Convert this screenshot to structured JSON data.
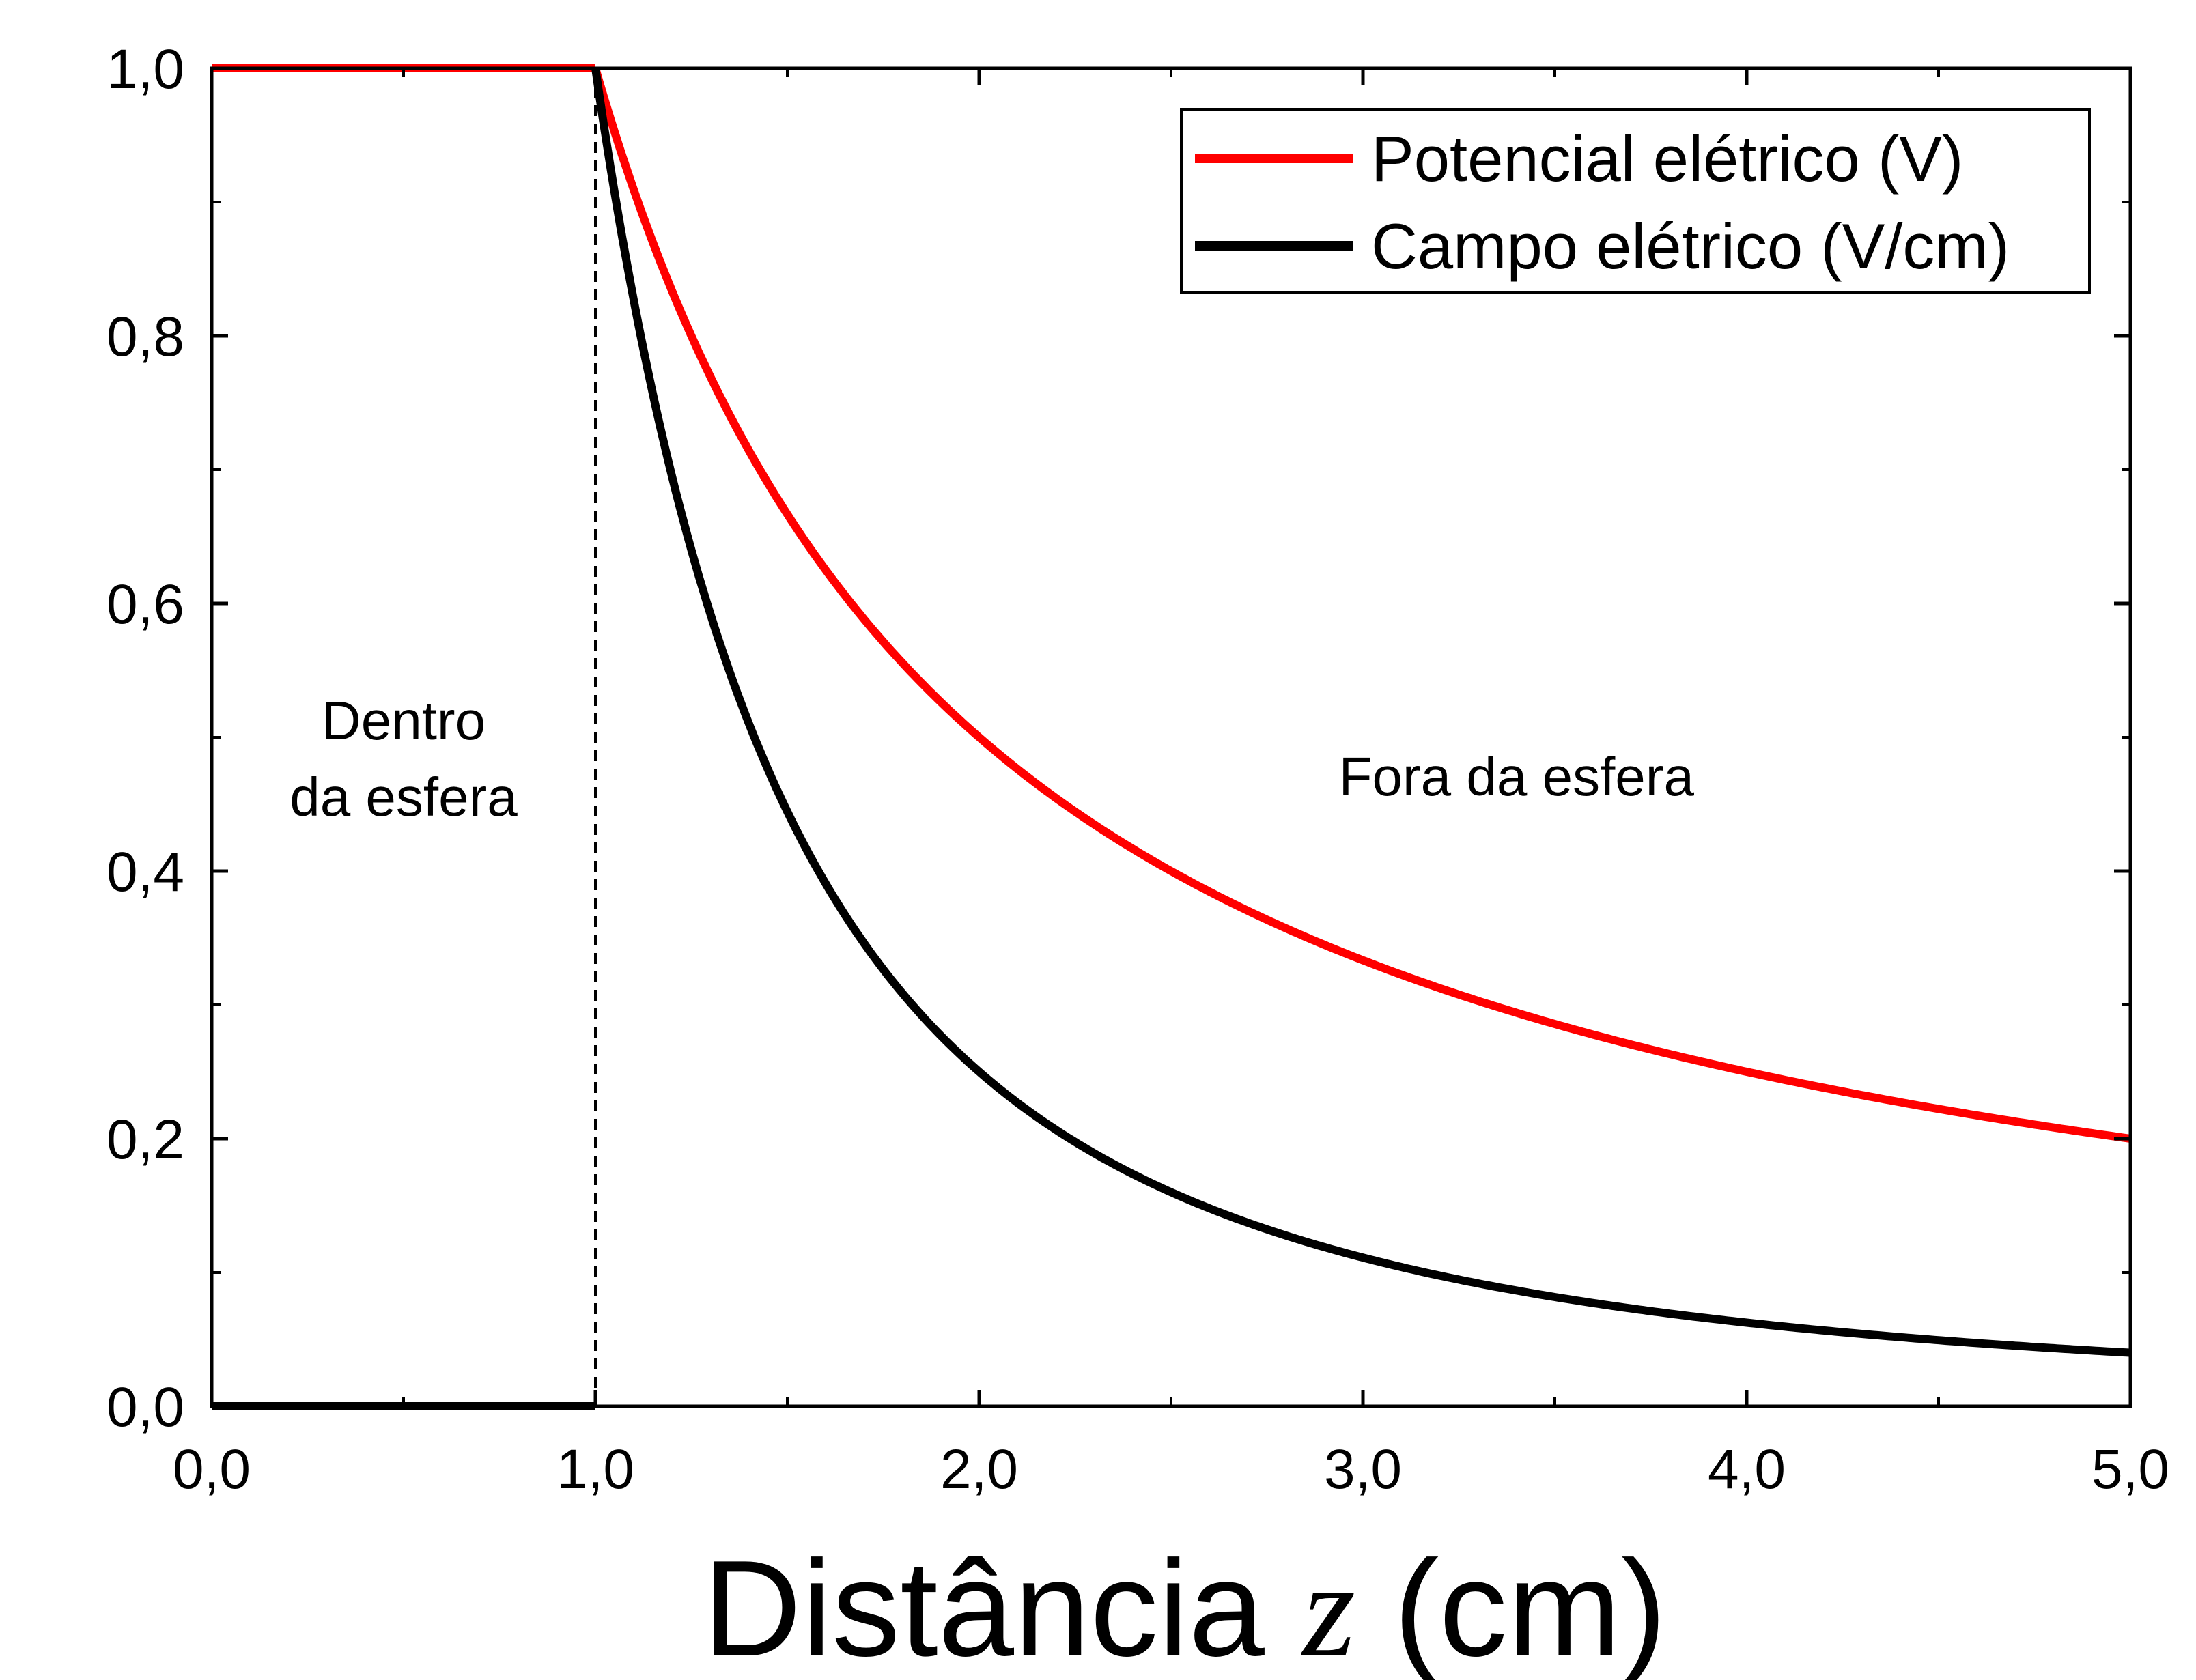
{
  "chart_data": {
    "type": "line",
    "xlabel": {
      "prefix": "Distância ",
      "variable": "z",
      "suffix": " (cm)"
    },
    "xlim": [
      0,
      5
    ],
    "ylim": [
      0,
      1
    ],
    "xticks": [
      0,
      1,
      2,
      3,
      4,
      5
    ],
    "xtick_labels": [
      "0,0",
      "1,0",
      "2,0",
      "3,0",
      "4,0",
      "5,0"
    ],
    "xminor_ticks": [
      0.5,
      1.5,
      2.5,
      3.5,
      4.5
    ],
    "yticks": [
      0,
      0.2,
      0.4,
      0.6,
      0.8,
      1.0
    ],
    "ytick_labels": [
      "0,0",
      "0,2",
      "0,4",
      "0,6",
      "0,8",
      "1,0"
    ],
    "yminor_ticks": [
      0.1,
      0.3,
      0.5,
      0.7,
      0.9
    ],
    "grid": false,
    "legend_position": "top-right",
    "vline": {
      "x": 1.0,
      "style": "dashed"
    },
    "annotations": [
      {
        "lines": [
          "Dentro",
          "da esfera"
        ],
        "x": 0.5,
        "y": 0.47
      },
      {
        "lines": [
          "Fora da esfera"
        ],
        "x": 3.4,
        "y": 0.47
      }
    ],
    "x": [
      0.0,
      0.5,
      1.0,
      1.25,
      1.5,
      1.75,
      2.0,
      2.5,
      3.0,
      3.5,
      4.0,
      4.5,
      5.0
    ],
    "series": [
      {
        "name": "Potencial elétrico (V)",
        "color": "#ff0000",
        "values": [
          1.0,
          1.0,
          1.0,
          0.8,
          0.667,
          0.571,
          0.5,
          0.4,
          0.333,
          0.286,
          0.25,
          0.222,
          0.2
        ]
      },
      {
        "name": "Campo elétrico (V/cm)",
        "color": "#000000",
        "values": [
          0.0,
          0.0,
          1.0,
          0.64,
          0.444,
          0.327,
          0.25,
          0.16,
          0.111,
          0.082,
          0.0625,
          0.049,
          0.04
        ]
      }
    ]
  }
}
